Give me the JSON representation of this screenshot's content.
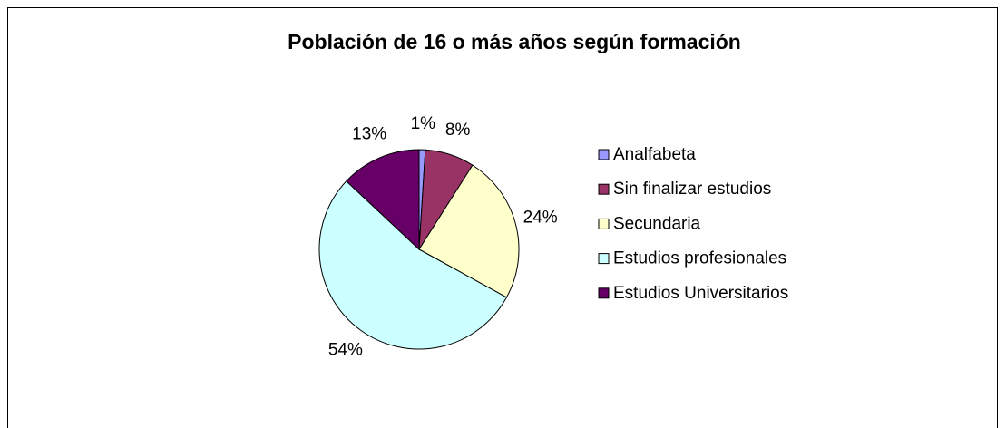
{
  "chart_data": {
    "type": "pie",
    "title": "Población de 16 o más años según formación",
    "categories": [
      "Analfabeta",
      "Sin finalizar estudios",
      "Secundaria",
      "Estudios profesionales",
      "Estudios Universitarios"
    ],
    "values": [
      1,
      8,
      24,
      54,
      13
    ],
    "value_labels": [
      "1%",
      "8%",
      "24%",
      "54%",
      "13%"
    ],
    "colors": [
      "#9999ff",
      "#993366",
      "#ffffcc",
      "#ccffff",
      "#660066"
    ],
    "legend": "right"
  }
}
